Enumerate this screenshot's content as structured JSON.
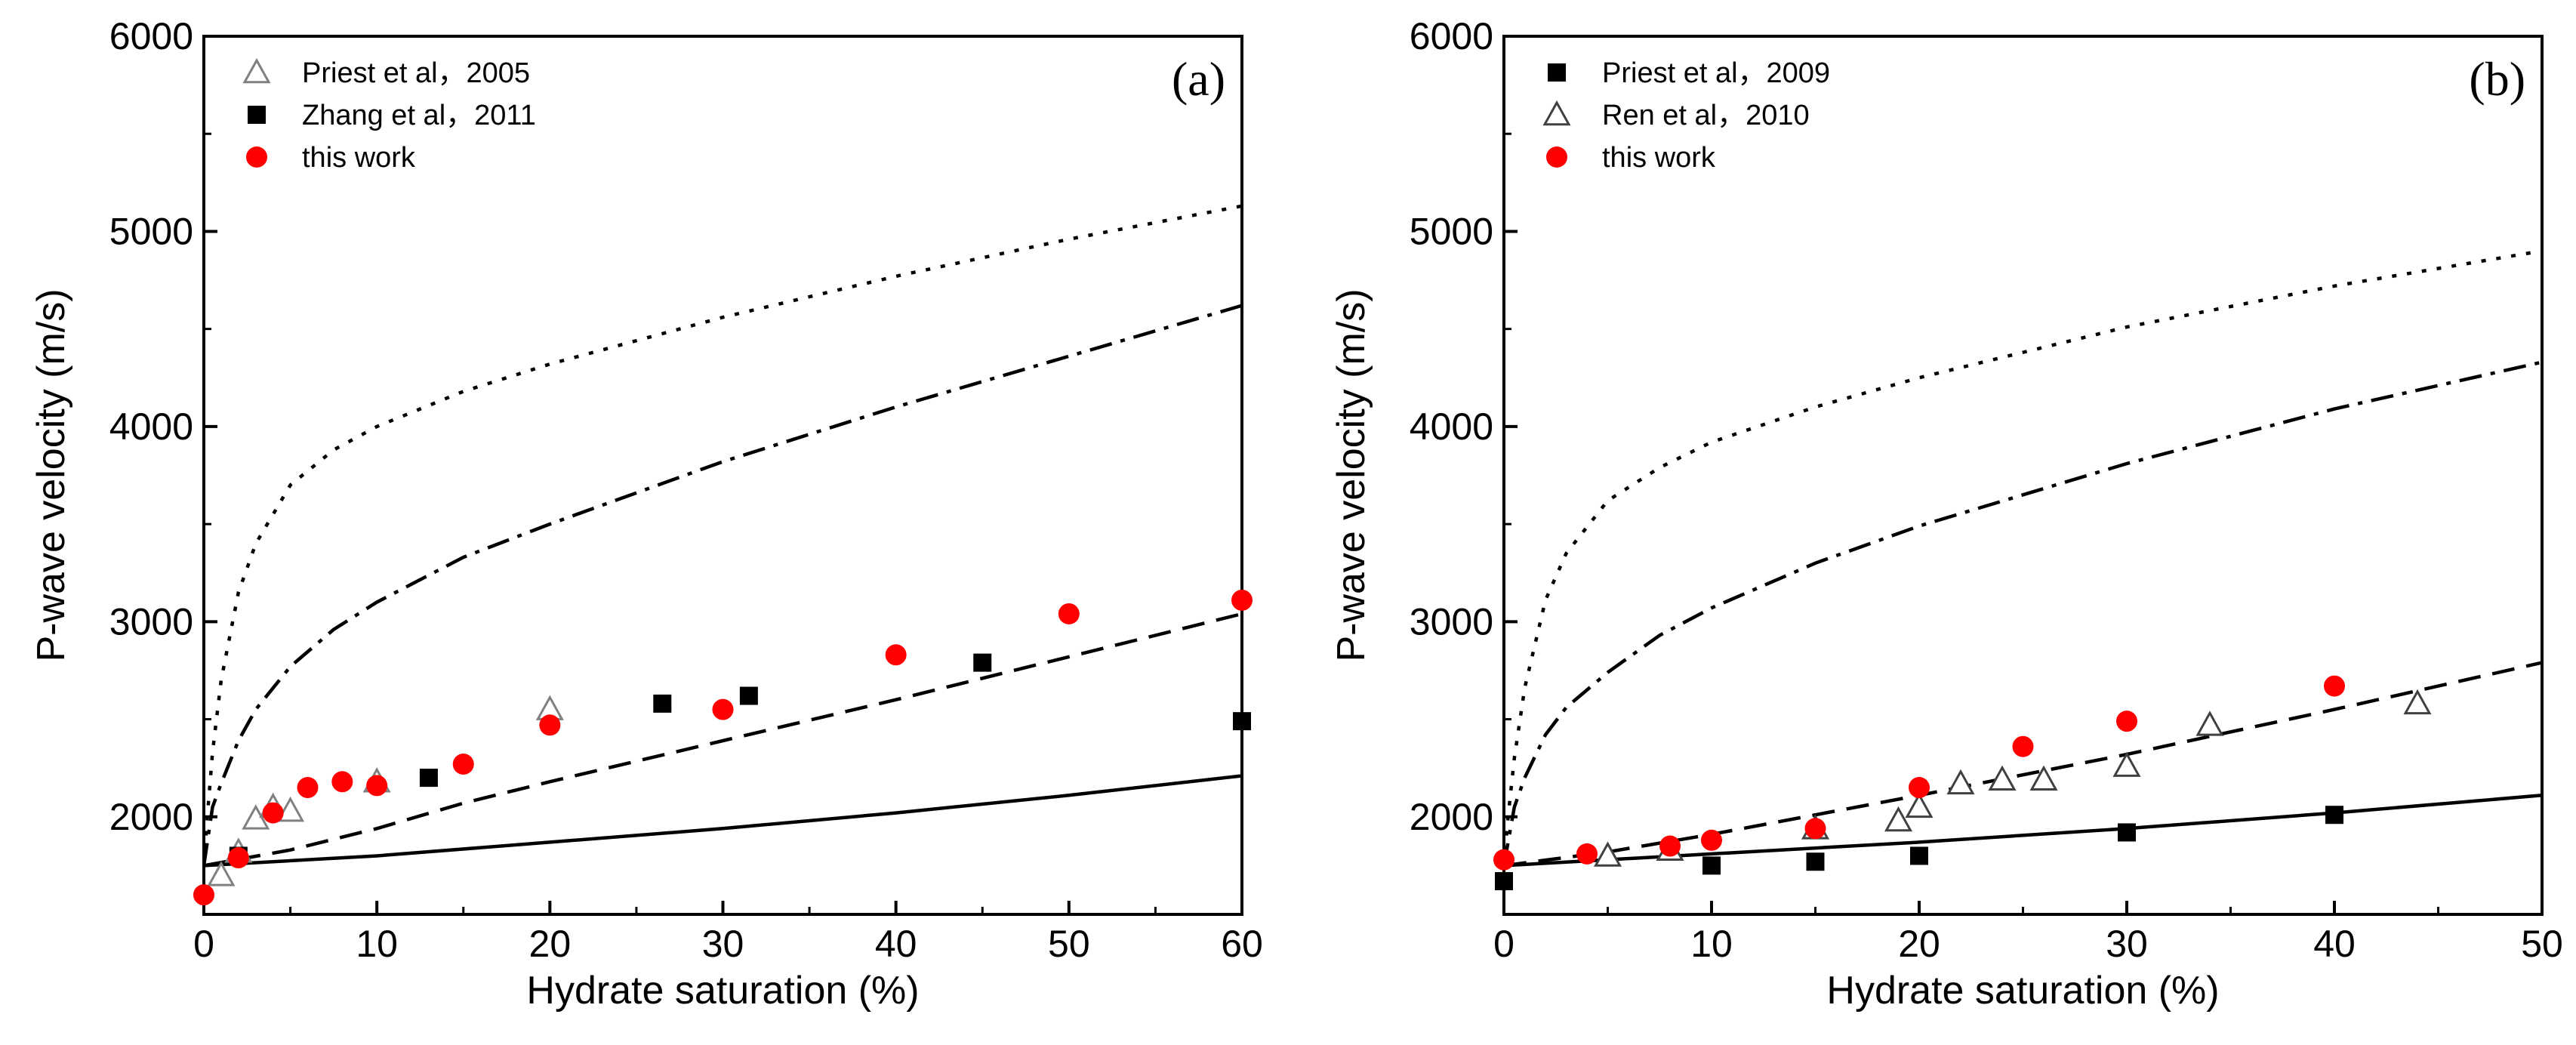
{
  "chart_data": [
    {
      "type": "scatter",
      "panel_label": "(a)",
      "xlabel": "Hydrate saturation (%)",
      "ylabel": "P-wave velocity (m/s)",
      "xlim": [
        0,
        60
      ],
      "ylim": [
        1500,
        6000
      ],
      "xticks": [
        0,
        10,
        20,
        30,
        40,
        50,
        60
      ],
      "yticks": [
        2000,
        3000,
        4000,
        5000,
        6000
      ],
      "grid": false,
      "legend_position": "top-left",
      "series": [
        {
          "name": "Priest et al，2005",
          "marker": "open-triangle",
          "color": "#808080",
          "x": [
            1,
            2,
            3,
            4,
            5,
            10,
            20
          ],
          "y": [
            1700,
            1820,
            1990,
            2050,
            2030,
            2180,
            2550
          ]
        },
        {
          "name": "Zhang et al，2011",
          "marker": "filled-square",
          "color": "#000000",
          "x": [
            2,
            13,
            26.5,
            31.5,
            45,
            60
          ],
          "y": [
            1800,
            2200,
            2580,
            2620,
            2790,
            2490
          ]
        },
        {
          "name": "this work",
          "marker": "filled-circle",
          "color": "#ff0000",
          "x": [
            0,
            2,
            4,
            6,
            8,
            10,
            15,
            20,
            30,
            40,
            50,
            60
          ],
          "y": [
            1600,
            1790,
            2020,
            2150,
            2180,
            2160,
            2270,
            2470,
            2550,
            2830,
            3040,
            3110
          ]
        }
      ],
      "model_curves": [
        {
          "style": "dotted",
          "x": [
            0,
            0.2,
            0.5,
            1,
            2,
            3,
            5,
            7.5,
            10,
            15,
            20,
            30,
            40,
            50,
            60
          ],
          "y": [
            1750,
            2000,
            2330,
            2700,
            3150,
            3400,
            3700,
            3880,
            4000,
            4180,
            4320,
            4560,
            4770,
            4960,
            5130
          ]
        },
        {
          "style": "dash-dot",
          "x": [
            0,
            0.5,
            1,
            2,
            3,
            5,
            7.5,
            10,
            15,
            20,
            30,
            40,
            50,
            60
          ],
          "y": [
            1750,
            2050,
            2170,
            2390,
            2550,
            2770,
            2960,
            3100,
            3330,
            3500,
            3820,
            4100,
            4360,
            4620
          ]
        },
        {
          "style": "dashed",
          "x": [
            0,
            5,
            10,
            15,
            20,
            30,
            40,
            50,
            60
          ],
          "y": [
            1750,
            1830,
            1940,
            2070,
            2180,
            2390,
            2600,
            2820,
            3040
          ]
        },
        {
          "style": "solid",
          "x": [
            0,
            10,
            20,
            30,
            40,
            50,
            60
          ],
          "y": [
            1750,
            1800,
            1870,
            1940,
            2020,
            2110,
            2210
          ]
        }
      ]
    },
    {
      "type": "scatter",
      "panel_label": "(b)",
      "xlabel": "Hydrate saturation (%)",
      "ylabel": "P-wave velocity (m/s)",
      "xlim": [
        0,
        50
      ],
      "ylim": [
        1500,
        6000
      ],
      "xticks": [
        0,
        10,
        20,
        30,
        40,
        50
      ],
      "yticks": [
        2000,
        3000,
        4000,
        5000,
        6000
      ],
      "grid": false,
      "legend_position": "top-left",
      "series": [
        {
          "name": "Priest et al，2009",
          "marker": "filled-square",
          "color": "#000000",
          "x": [
            0,
            10,
            15,
            20,
            30,
            40
          ],
          "y": [
            1670,
            1750,
            1770,
            1800,
            1920,
            2010
          ]
        },
        {
          "name": "Ren et al，2010",
          "marker": "open-triangle",
          "color": "#404040",
          "x": [
            5,
            8,
            15,
            19,
            20,
            22,
            24,
            26,
            30,
            34,
            44
          ],
          "y": [
            1800,
            1830,
            1940,
            1980,
            2050,
            2170,
            2190,
            2190,
            2260,
            2470,
            2580
          ]
        },
        {
          "name": "this work",
          "marker": "filled-circle",
          "color": "#ff0000",
          "x": [
            0,
            4,
            8,
            10,
            15,
            20,
            25,
            30,
            40
          ],
          "y": [
            1780,
            1810,
            1850,
            1880,
            1940,
            2150,
            2360,
            2490,
            2670
          ]
        }
      ],
      "model_curves": [
        {
          "style": "dotted",
          "x": [
            0,
            0.2,
            0.5,
            1,
            2,
            3,
            5,
            7.5,
            10,
            15,
            20,
            30,
            40,
            50
          ],
          "y": [
            1750,
            2000,
            2300,
            2660,
            3110,
            3350,
            3620,
            3790,
            3920,
            4100,
            4250,
            4510,
            4720,
            4900
          ]
        },
        {
          "style": "dash-dot",
          "x": [
            0,
            0.5,
            1,
            2,
            3,
            5,
            7.5,
            10,
            15,
            20,
            30,
            40,
            50
          ],
          "y": [
            1750,
            2050,
            2200,
            2420,
            2560,
            2740,
            2930,
            3070,
            3300,
            3490,
            3810,
            4090,
            4330
          ]
        },
        {
          "style": "dashed",
          "x": [
            0,
            5,
            10,
            15,
            20,
            30,
            40,
            50
          ],
          "y": [
            1750,
            1820,
            1910,
            2010,
            2110,
            2320,
            2550,
            2790
          ]
        },
        {
          "style": "solid",
          "x": [
            0,
            10,
            20,
            30,
            40,
            50
          ],
          "y": [
            1750,
            1810,
            1870,
            1940,
            2020,
            2110
          ]
        }
      ]
    }
  ]
}
